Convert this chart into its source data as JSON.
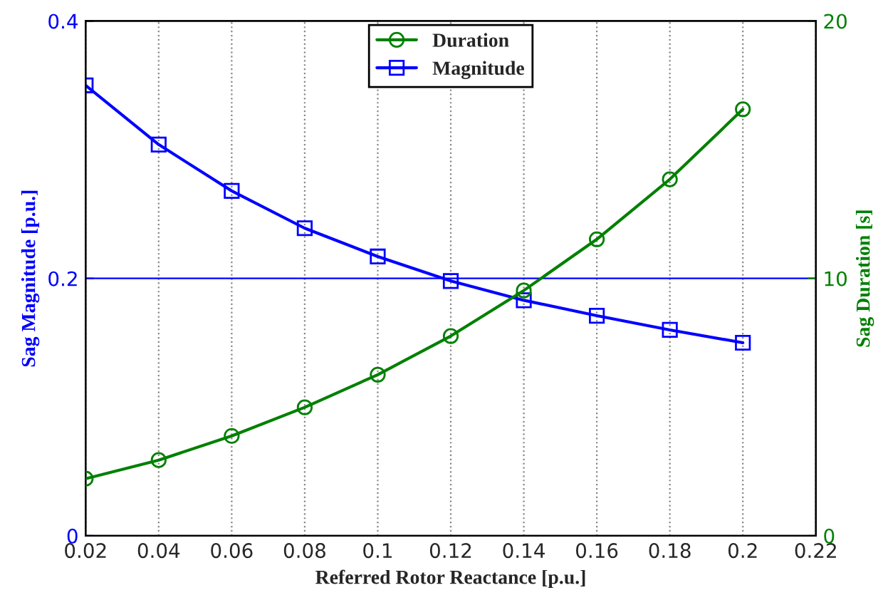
{
  "chart_data": {
    "type": "line",
    "xlabel": "Referred Rotor Reactance [p.u.]",
    "ylabel": "Sag Magnitude [p.u.]",
    "y2label": "Sag Duration [s]",
    "x": [
      0.02,
      0.04,
      0.06,
      0.08,
      0.1,
      0.12,
      0.14,
      0.16,
      0.18,
      0.2
    ],
    "series": [
      {
        "name": "Duration",
        "color": "#008000",
        "axis": "y2",
        "marker": "circle",
        "values": [
          2.22,
          2.94,
          3.88,
          4.99,
          6.26,
          7.76,
          9.53,
          11.52,
          13.85,
          16.57
        ]
      },
      {
        "name": "Magnitude",
        "color": "#0000ff",
        "marker": "square",
        "values": [
          0.35,
          0.304,
          0.268,
          0.239,
          0.217,
          0.198,
          0.183,
          0.171,
          0.16,
          0.15
        ]
      }
    ],
    "xlim": [
      0.02,
      0.22
    ],
    "xticks": [
      0.02,
      0.04,
      0.06,
      0.08,
      0.1,
      0.12,
      0.14,
      0.16,
      0.18,
      0.2,
      0.22
    ],
    "ylim": [
      0,
      0.4
    ],
    "yticks": [
      0,
      0.2,
      0.4
    ],
    "y2lim": [
      0,
      20
    ],
    "y2ticks": [
      0,
      10,
      20
    ],
    "grid": "x",
    "ref_lines": [
      {
        "axis": "y",
        "value": 0.2,
        "color": "#0000ff",
        "line_style": "solid"
      }
    ],
    "legend": "top",
    "line_style": "solid"
  }
}
